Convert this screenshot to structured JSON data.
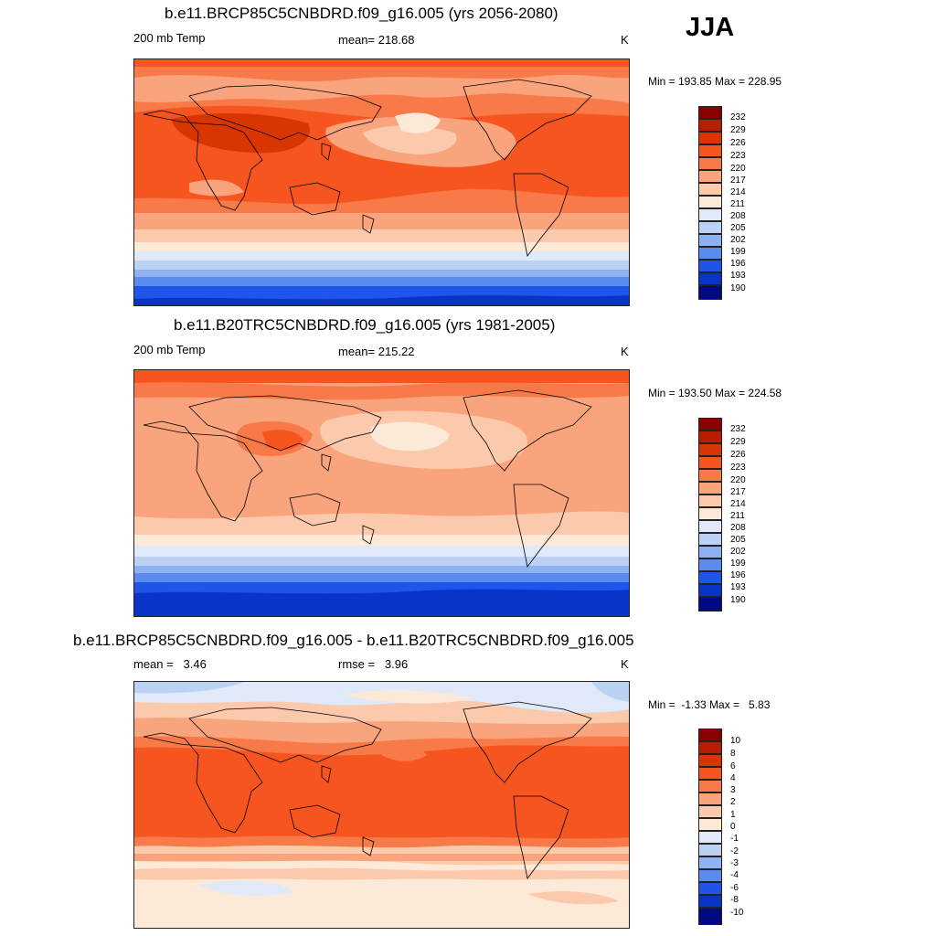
{
  "season": "JJA",
  "panels": [
    {
      "title": "b.e11.BRCP85C5CNBDRD.f09_g16.005 (yrs 2056-2080)",
      "variable": "200 mb Temp",
      "stat": "mean= 218.68",
      "units": "K",
      "minmax": "Min = 193.85 Max = 228.95",
      "levels": [
        "232",
        "229",
        "226",
        "223",
        "220",
        "217",
        "214",
        "211",
        "208",
        "205",
        "202",
        "199",
        "196",
        "193",
        "190"
      ]
    },
    {
      "title": "b.e11.B20TRC5CNBDRD.f09_g16.005 (yrs 1981-2005)",
      "variable": "200 mb Temp",
      "stat": "mean= 215.22",
      "units": "K",
      "minmax": "Min = 193.50 Max = 224.58",
      "levels": [
        "232",
        "229",
        "226",
        "223",
        "220",
        "217",
        "214",
        "211",
        "208",
        "205",
        "202",
        "199",
        "196",
        "193",
        "190"
      ]
    },
    {
      "title": "b.e11.BRCP85C5CNBDRD.f09_g16.005 - b.e11.B20TRC5CNBDRD.f09_g16.005",
      "variable": "mean =   3.46",
      "stat": "rmse =   3.96",
      "units": "K",
      "minmax": "Min =  -1.33 Max =   5.83",
      "levels": [
        "10",
        "8",
        "6",
        "4",
        "3",
        "2",
        "1",
        "0",
        "-1",
        "-2",
        "-3",
        "-4",
        "-6",
        "-8",
        "-10"
      ]
    }
  ],
  "palette": [
    "#8b0000",
    "#b81d00",
    "#d83500",
    "#f65520",
    "#f77a48",
    "#f9a47c",
    "#fbc9ab",
    "#fde9d7",
    "#dfe9f8",
    "#bbd2f4",
    "#8eb2f1",
    "#5a8cf0",
    "#1f55e8",
    "#0a33c7",
    "#000a82"
  ]
}
